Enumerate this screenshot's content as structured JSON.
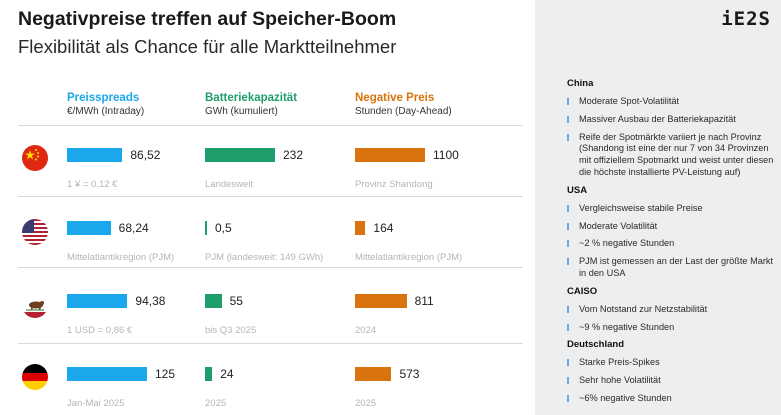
{
  "header": {
    "title": "Negativpreise treffen auf Speicher-Boom",
    "subtitle": "Flexibilität als Chance für alle Marktteilnehmer",
    "logo": "iE2S"
  },
  "colors": {
    "spread": "#1aa7ec",
    "battery": "#1e9e6a",
    "negative": "#d9730d"
  },
  "chart_data": {
    "type": "bar",
    "metrics": [
      {
        "key": "spread",
        "title": "Preisspreads",
        "unit": "€/MWh (Intraday)",
        "color": "#1aa7ec",
        "max": 125
      },
      {
        "key": "battery",
        "title": "Batteriekapazität",
        "unit": "GWh (kumuliert)",
        "color": "#1e9e6a",
        "max": 232
      },
      {
        "key": "negative",
        "title": "Negative Preis",
        "unit": "Stunden (Day-Ahead)",
        "color": "#d9730d",
        "max": 1100
      }
    ],
    "rows": [
      {
        "region": "China",
        "flag": "china-flag-icon",
        "spread": 86.52,
        "spread_label": "86,52",
        "spread_note": "1 ¥ = 0,12 €",
        "battery": 232,
        "battery_label": "232",
        "battery_note": "Landesweit",
        "negative": 1100,
        "negative_label": "1100",
        "negative_note": "Provinz Shandong"
      },
      {
        "region": "USA",
        "flag": "usa-flag-icon",
        "spread": 68.24,
        "spread_label": "68,24",
        "spread_note": "Mittelatlantikregion (PJM)",
        "battery": 0.5,
        "battery_label": "0,5",
        "battery_note": "PJM (landesweit: 149 GWh)",
        "negative": 164,
        "negative_label": "164",
        "negative_note": "Mittelatlantikregion (PJM)"
      },
      {
        "region": "California",
        "flag": "california-flag-icon",
        "spread": 94.38,
        "spread_label": "94,38",
        "spread_note": "1 USD = 0,86 €",
        "battery": 55,
        "battery_label": "55",
        "battery_note": "bis Q3 2025",
        "negative": 811,
        "negative_label": "811",
        "negative_note": "2024"
      },
      {
        "region": "Deutschland",
        "flag": "germany-flag-icon",
        "spread": 125,
        "spread_label": "125",
        "spread_note": "Jan-Mai 2025",
        "battery": 24,
        "battery_label": "24",
        "battery_note": "2025",
        "negative": 573,
        "negative_label": "573",
        "negative_note": "2025"
      }
    ]
  },
  "sidebar": {
    "sections": [
      {
        "title": "China",
        "items": [
          "Moderate Spot-Volatilität",
          "Massiver Ausbau der Batteriekapazität",
          "Reife der Spotmärkte variiert je nach Provinz (Shandong ist eine der nur 7 von 34 Provinzen mit offiziellem Spotmarkt und weist unter diesen die höchste installierte PV-Leistung auf)"
        ]
      },
      {
        "title": "USA",
        "items": [
          "Vergleichsweise stabile Preise",
          "Moderate Volatilität",
          "~2 % negative Stunden",
          "PJM ist gemessen an der Last der größte Markt in den USA"
        ]
      },
      {
        "title": "CAISO",
        "items": [
          "Vom Notstand zur Netzstabilität",
          "~9 % negative Stunden"
        ]
      },
      {
        "title": "Deutschland",
        "items": [
          "Starke Preis-Spikes",
          "Sehr hohe Volatilität",
          "~6% negative Stunden"
        ]
      }
    ]
  }
}
